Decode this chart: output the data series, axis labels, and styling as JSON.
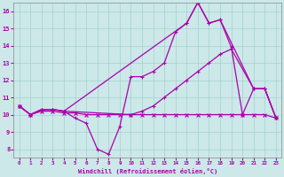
{
  "xlabel": "Windchill (Refroidissement éolien,°C)",
  "bg_color": "#cce8e8",
  "line_color": "#aa00aa",
  "xlim": [
    -0.5,
    23.5
  ],
  "ylim": [
    7.5,
    16.5
  ],
  "yticks": [
    8,
    9,
    10,
    11,
    12,
    13,
    14,
    15,
    16
  ],
  "xticks": [
    0,
    1,
    2,
    3,
    4,
    5,
    6,
    7,
    8,
    9,
    10,
    11,
    12,
    13,
    14,
    15,
    16,
    17,
    18,
    19,
    20,
    21,
    22,
    23
  ],
  "line1_x": [
    0,
    1,
    2,
    3,
    4,
    5,
    6,
    7,
    8,
    9,
    10,
    11,
    12,
    13,
    14,
    15,
    16,
    17,
    18,
    19,
    20,
    21,
    22,
    23
  ],
  "line1_y": [
    10.5,
    10.0,
    10.3,
    10.3,
    10.2,
    9.8,
    9.5,
    8.0,
    7.7,
    9.3,
    12.2,
    12.2,
    12.5,
    13.0,
    14.8,
    15.3,
    16.5,
    15.3,
    15.5,
    13.9,
    10.0,
    11.5,
    11.5,
    9.8
  ],
  "line2_x": [
    0,
    1,
    2,
    3,
    4,
    10,
    11,
    12,
    13,
    14,
    15,
    16,
    17,
    18,
    19,
    21,
    22,
    23
  ],
  "line2_y": [
    10.5,
    10.0,
    10.3,
    10.3,
    10.2,
    10.0,
    10.2,
    10.5,
    11.0,
    11.5,
    12.0,
    12.5,
    13.0,
    13.5,
    13.8,
    11.5,
    11.5,
    9.8
  ],
  "line3_x": [
    0,
    1,
    2,
    3,
    4,
    5,
    6,
    7,
    8,
    9,
    10,
    11,
    12,
    13,
    14,
    15,
    16,
    17,
    18,
    19,
    20,
    21,
    22,
    23
  ],
  "line3_y": [
    10.5,
    10.0,
    10.2,
    10.2,
    10.1,
    10.1,
    10.0,
    10.0,
    10.0,
    10.0,
    10.0,
    10.0,
    10.0,
    10.0,
    10.0,
    10.0,
    10.0,
    10.0,
    10.0,
    10.0,
    10.0,
    10.0,
    10.0,
    9.8
  ],
  "line4_x": [
    0,
    1,
    2,
    3,
    4,
    15,
    16,
    17,
    18,
    21,
    22,
    23
  ],
  "line4_y": [
    10.5,
    10.0,
    10.3,
    10.3,
    10.2,
    15.3,
    16.5,
    15.3,
    15.5,
    11.5,
    11.5,
    9.8
  ]
}
